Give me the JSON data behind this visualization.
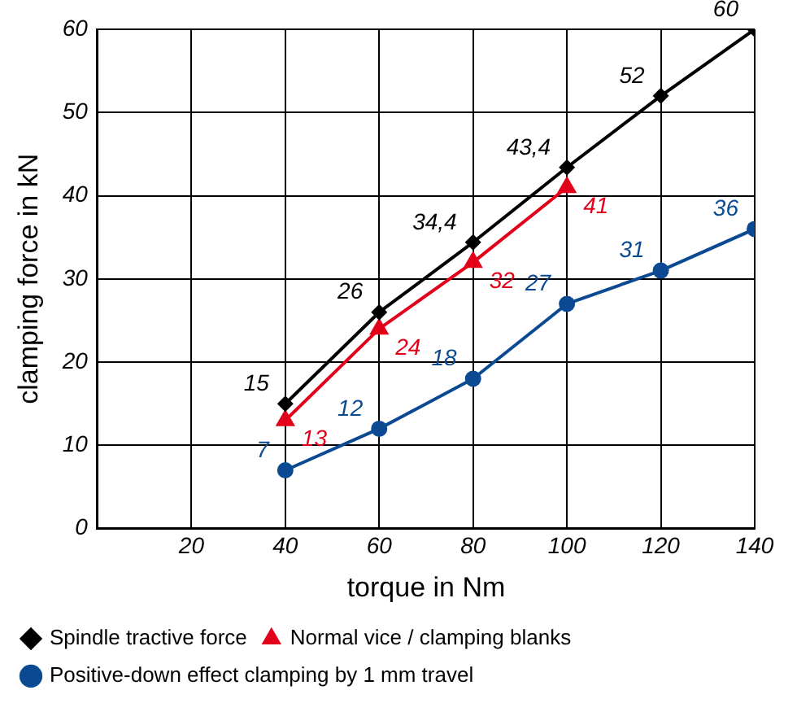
{
  "chart_data": {
    "type": "line",
    "xlabel": "torque in Nm",
    "ylabel": "clamping force in kN",
    "x": [
      40,
      60,
      80,
      100,
      120,
      140
    ],
    "xlim": [
      0,
      140
    ],
    "xticks": [
      {
        "value": 0,
        "label": null
      },
      20,
      40,
      60,
      80,
      100,
      120,
      140
    ],
    "ylim": [
      0,
      60
    ],
    "yticks": [
      0,
      10,
      20,
      30,
      40,
      50,
      60
    ],
    "grid": true,
    "legend": "bottom left",
    "line_style": "solid",
    "series": [
      {
        "name": "Spindle tractive force",
        "color": "#000000",
        "marker": "diamond",
        "values": [
          15,
          26,
          34.4,
          43.4,
          52,
          60
        ],
        "value_labels": [
          "15",
          "26",
          "34,4",
          "43,4",
          "52",
          "60"
        ]
      },
      {
        "name": "Normal vice / clamping blanks",
        "color": "#e2001a",
        "marker": "triangle",
        "x": [
          40,
          60,
          80,
          100
        ],
        "values": [
          13,
          24,
          32,
          41
        ],
        "value_labels": [
          "13",
          "24",
          "32",
          "41"
        ]
      },
      {
        "name": "Positive-down effect clamping by 1 mm travel",
        "color": "#0b4a92",
        "marker": "circle",
        "values": [
          7,
          12,
          18,
          27,
          31,
          36
        ],
        "value_labels": [
          "7",
          "12",
          "18",
          "27",
          "31",
          "36"
        ]
      }
    ]
  }
}
